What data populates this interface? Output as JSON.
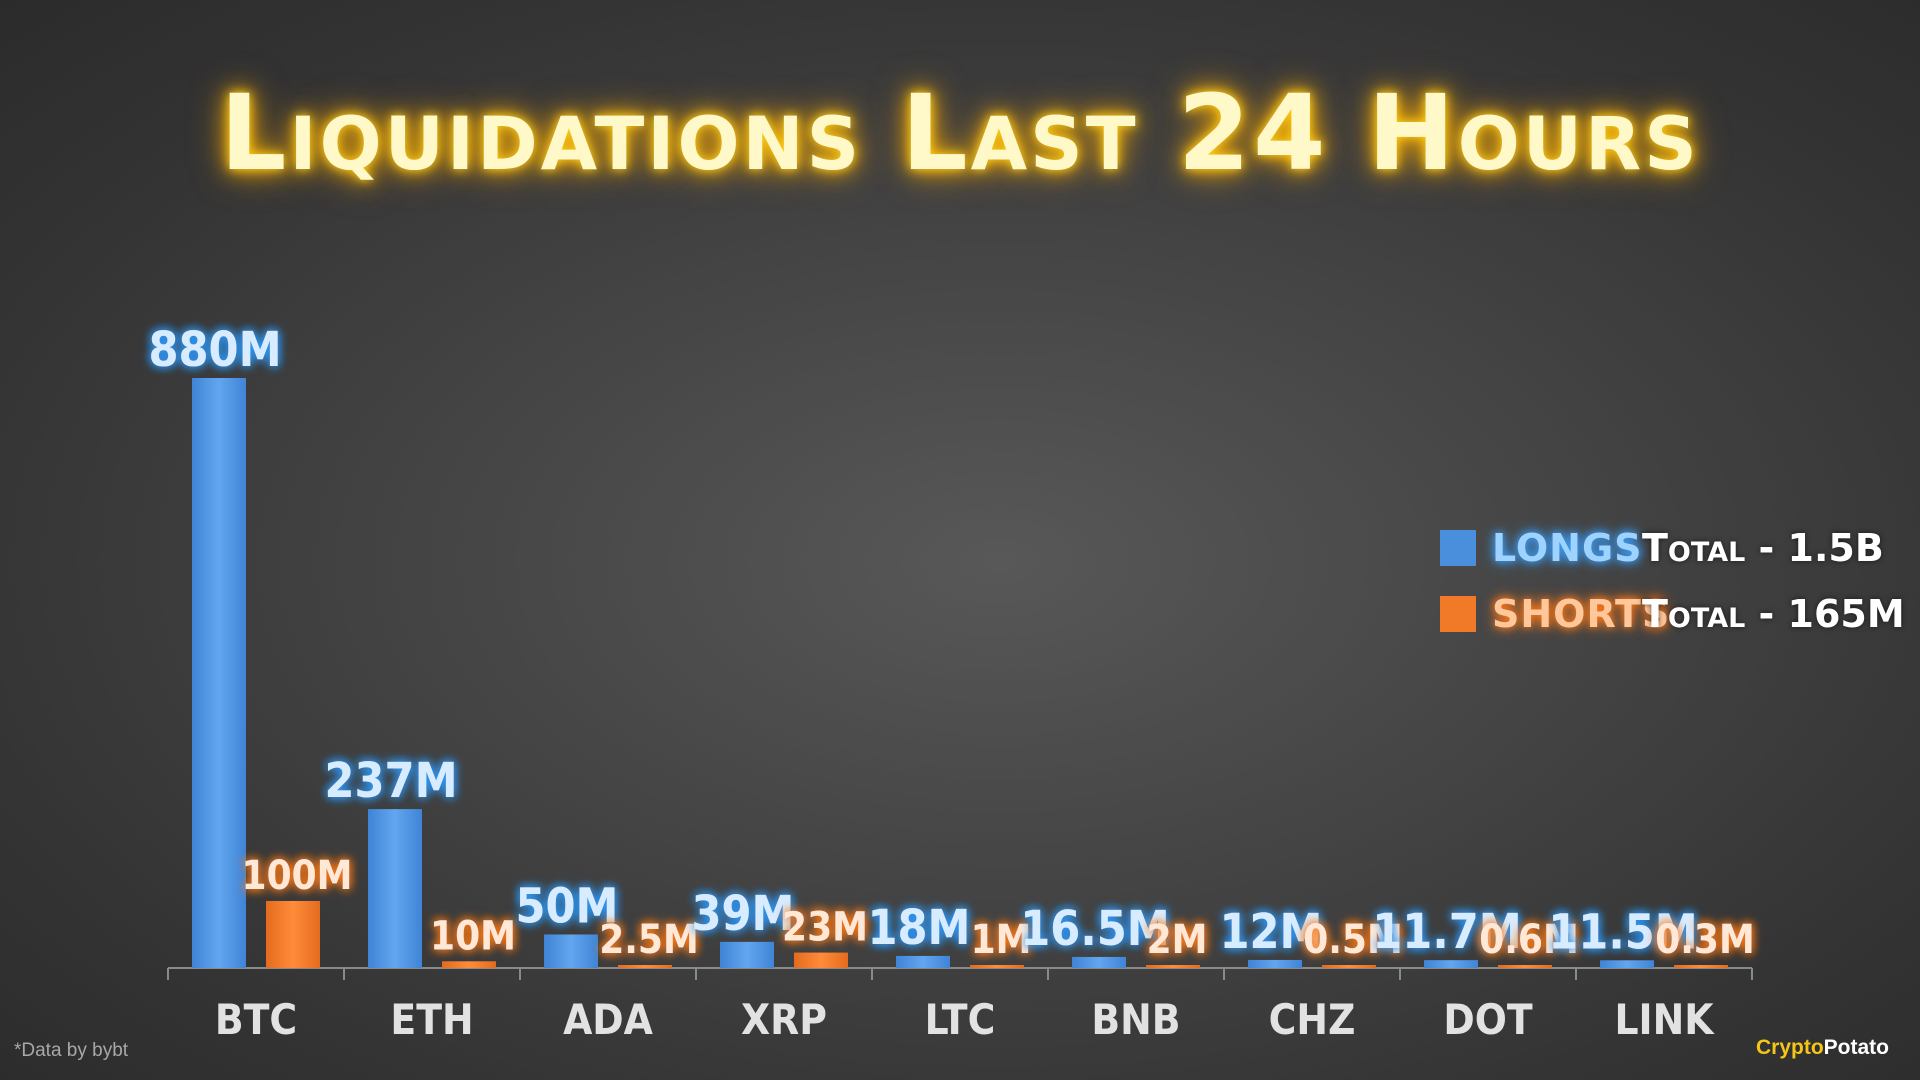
{
  "colors": {
    "longs": "#4a8fdb",
    "longs_label": "#d8ecff",
    "longs_glow": "#3aa0ff",
    "shorts": "#f07a28",
    "shorts_label": "#ffe8d6",
    "shorts_glow": "#ff7a1a",
    "legend_longs_text": "#9fd3ff",
    "legend_shorts_text": "#ffc79a",
    "axis": "#8a8a8a",
    "tick_text": "#e2e2e2"
  },
  "legend": {
    "longs_name": "LONGS",
    "longs_total": "Total - 1.5B",
    "shorts_name": "SHORTS",
    "shorts_total": "Total - 165M"
  },
  "footnote": "*Data by bybt",
  "brand": {
    "part1": "Crypto",
    "part2": "Potato"
  },
  "chart_data": {
    "type": "bar",
    "title": "Liquidations Last 24 Hours",
    "xlabel": "",
    "ylabel": "",
    "unit": "M",
    "grid": false,
    "legend_position": "right",
    "ylim": [
      0,
      880
    ],
    "categories": [
      "BTC",
      "ETH",
      "ADA",
      "XRP",
      "LTC",
      "BNB",
      "CHZ",
      "DOT",
      "LINK"
    ],
    "series": [
      {
        "name": "LONGS",
        "values": [
          880,
          237,
          50,
          39,
          18,
          16.5,
          12,
          11.7,
          11.5
        ],
        "labels": [
          "880M",
          "237M",
          "50M",
          "39M",
          "18M",
          "16.5M",
          "12M",
          "11.7M",
          "11.5M"
        ]
      },
      {
        "name": "SHORTS",
        "values": [
          100,
          10,
          2.5,
          23,
          1,
          2,
          0.5,
          0.6,
          0.3
        ],
        "labels": [
          "100M",
          "10M",
          "2.5M",
          "23M",
          "1M",
          "2M",
          "0.5M",
          "0.6M",
          "0.3M"
        ]
      }
    ]
  }
}
